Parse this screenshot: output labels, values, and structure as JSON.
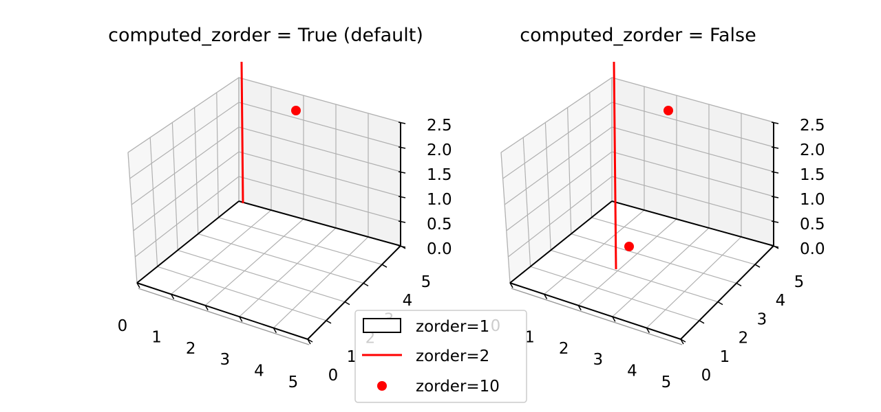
{
  "chart_data": [
    {
      "type": "3d-scatter-line",
      "title": "computed_zorder = True (default)",
      "x_ticks": [
        "0",
        "1",
        "2",
        "3",
        "4",
        "5"
      ],
      "y_ticks": [
        "0",
        "1",
        "2",
        "3",
        "4",
        "5"
      ],
      "z_ticks": [
        "0.0",
        "0.5",
        "1.0",
        "1.5",
        "2.0",
        "2.5"
      ],
      "xlim": [
        0,
        5
      ],
      "ylim": [
        0,
        5
      ],
      "zlim": [
        0,
        2.5
      ],
      "grid": true
    },
    {
      "type": "3d-scatter-line",
      "title": "computed_zorder = False",
      "x_ticks": [
        "0",
        "1",
        "2",
        "3",
        "4",
        "5"
      ],
      "y_ticks": [
        "0",
        "1",
        "2",
        "3",
        "4",
        "5"
      ],
      "z_ticks": [
        "0.0",
        "0.5",
        "1.0",
        "1.5",
        "2.0",
        "2.5"
      ],
      "xlim": [
        0,
        5
      ],
      "ylim": [
        0,
        5
      ],
      "zlim": [
        0,
        2.5
      ],
      "grid": true
    }
  ],
  "legend": {
    "placement": "lower-center",
    "entries": [
      {
        "label": "zorder=1",
        "marker": "patch",
        "color": "#000000"
      },
      {
        "label": "zorder=2",
        "marker": "line",
        "color": "#ff0000"
      },
      {
        "label": "zorder=10",
        "marker": "dot",
        "color": "#ff0000"
      }
    ]
  },
  "colors": {
    "accent": "#ff0000",
    "axis": "#000000",
    "grid": "#b0b0b0",
    "pane_left": "#f7f7f7",
    "pane_back": "#f2f2f2",
    "pane_floor": "#ffffff"
  }
}
